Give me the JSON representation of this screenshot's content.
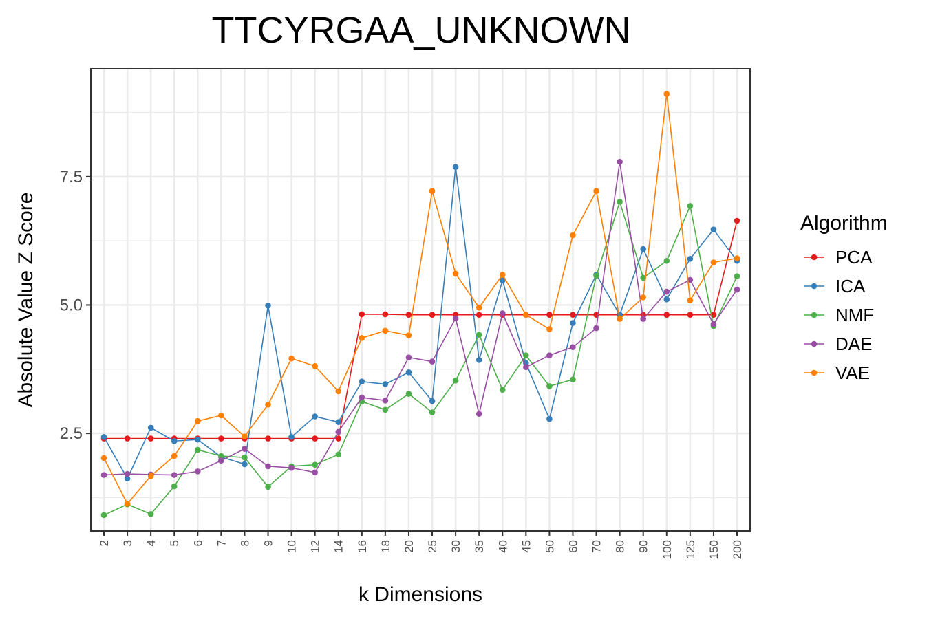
{
  "chart_data": {
    "type": "line",
    "title": "TTCYRGAA_UNKNOWN",
    "xlabel": "k Dimensions",
    "ylabel": "Absolute Value Z Score",
    "categories": [
      "2",
      "3",
      "4",
      "5",
      "6",
      "7",
      "8",
      "9",
      "10",
      "12",
      "14",
      "16",
      "18",
      "20",
      "25",
      "30",
      "35",
      "40",
      "45",
      "50",
      "60",
      "70",
      "80",
      "90",
      "100",
      "125",
      "150",
      "200"
    ],
    "ylim": [
      0.6,
      9.6
    ],
    "yticks": [
      2.5,
      5.0,
      7.5
    ],
    "ytick_labels": [
      "2.5",
      "5.0",
      "7.5"
    ],
    "grid": true,
    "legend": {
      "title": "Algorithm",
      "placement": "right"
    },
    "series": [
      {
        "name": "PCA",
        "color": "#e41a1c",
        "values": [
          2.4,
          2.4,
          2.4,
          2.4,
          2.4,
          2.4,
          2.4,
          2.4,
          2.4,
          2.4,
          2.4,
          4.82,
          4.82,
          4.81,
          4.81,
          4.81,
          4.81,
          4.81,
          4.81,
          4.81,
          4.81,
          4.81,
          4.81,
          4.81,
          4.81,
          4.81,
          4.81,
          6.64
        ]
      },
      {
        "name": "ICA",
        "color": "#377eb8",
        "values": [
          2.43,
          1.62,
          2.61,
          2.35,
          2.38,
          2.04,
          1.9,
          4.99,
          2.43,
          2.83,
          2.72,
          3.51,
          3.46,
          3.69,
          3.13,
          7.69,
          3.93,
          5.48,
          3.87,
          2.78,
          4.65,
          5.59,
          4.81,
          6.09,
          5.11,
          5.9,
          6.47,
          5.86
        ]
      },
      {
        "name": "NMF",
        "color": "#4daf4a",
        "values": [
          0.91,
          1.12,
          0.93,
          1.47,
          2.18,
          2.06,
          2.03,
          1.46,
          1.86,
          1.89,
          2.09,
          3.12,
          2.96,
          3.27,
          2.91,
          3.53,
          4.42,
          3.35,
          4.02,
          3.42,
          3.55,
          5.57,
          7.01,
          5.53,
          5.86,
          6.93,
          4.59,
          5.56
        ]
      },
      {
        "name": "DAE",
        "color": "#984ea3",
        "values": [
          1.69,
          1.71,
          1.7,
          1.69,
          1.76,
          1.97,
          2.2,
          1.86,
          1.83,
          1.74,
          2.53,
          3.2,
          3.14,
          3.98,
          3.9,
          4.74,
          2.88,
          4.84,
          3.79,
          4.02,
          4.18,
          4.55,
          7.79,
          4.73,
          5.26,
          5.49,
          4.63,
          5.3
        ]
      },
      {
        "name": "VAE",
        "color": "#ff7f00",
        "values": [
          2.02,
          1.13,
          1.67,
          2.06,
          2.74,
          2.85,
          2.44,
          3.06,
          3.96,
          3.81,
          3.32,
          4.36,
          4.5,
          4.41,
          7.22,
          5.61,
          4.95,
          5.59,
          4.81,
          4.53,
          6.36,
          7.22,
          4.73,
          5.15,
          9.11,
          5.09,
          5.83,
          5.91
        ]
      }
    ]
  }
}
